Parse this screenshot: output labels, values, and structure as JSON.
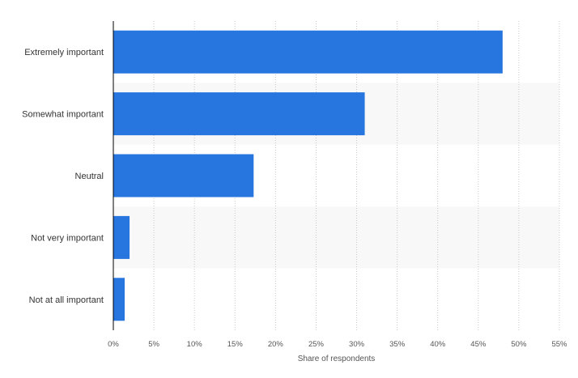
{
  "chart_data": {
    "type": "bar",
    "orientation": "horizontal",
    "categories": [
      "Extremely important",
      "Somewhat important",
      "Neutral",
      "Not very important",
      "Not at all important"
    ],
    "values": [
      48,
      31,
      17.3,
      2,
      1.4
    ],
    "unit": "%",
    "xlabel": "Share of respondents",
    "ylabel": "",
    "xlim": [
      0,
      55
    ],
    "xticks": [
      "0%",
      "5%",
      "10%",
      "15%",
      "20%",
      "25%",
      "30%",
      "35%",
      "40%",
      "45%",
      "50%",
      "55%"
    ],
    "grid": "vertical dotted",
    "bar_color": "#2775de",
    "band_color": "#f8f8f8"
  }
}
